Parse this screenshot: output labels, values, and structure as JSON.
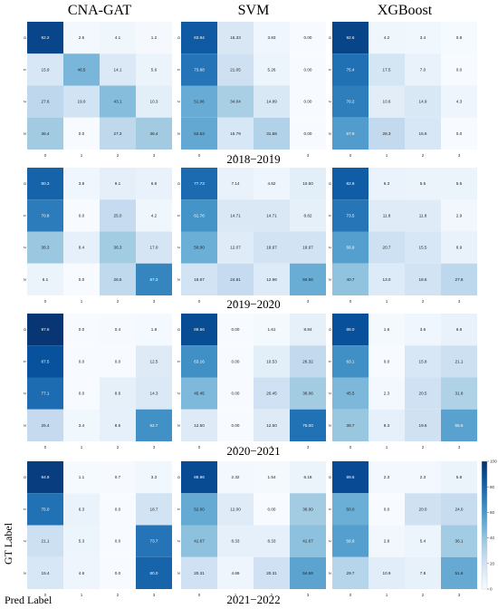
{
  "colors": {
    "scale": [
      "#f7fbff",
      "#deebf7",
      "#c6dbef",
      "#9ecae1",
      "#6baed6",
      "#4292c6",
      "#2171b5",
      "#08519c",
      "#08306b"
    ]
  },
  "chart_data": {
    "type": "heatmap",
    "models": [
      "CNA-GAT",
      "SVM",
      "XGBoost"
    ],
    "periods": [
      "2018−2019",
      "2019−2020",
      "2020−2021",
      "2021−2022"
    ],
    "tick_labels": [
      "0",
      "1",
      "2",
      "3"
    ],
    "ylabel": "GT Label",
    "xlabel": "Pred Label",
    "colorbar": {
      "min": 0,
      "max": 100,
      "ticks": [
        "100",
        "80",
        "60",
        "40",
        "20",
        "0"
      ]
    },
    "matrices": [
      [
        [
          "92.2",
          "2.5",
          "4.1",
          "1.2",
          "15.9",
          "46.5",
          "14.1",
          "5.6",
          "27.6",
          "19.0",
          "43.1",
          "10.3",
          "36.4",
          "0.0",
          "27.3",
          "36.4"
        ],
        [
          "83.94",
          "15.33",
          "3.83",
          "0.00",
          "73.68",
          "21.05",
          "5.26",
          "0.00",
          "51.06",
          "34.04",
          "14.89",
          "0.00",
          "52.63",
          "15.79",
          "31.58",
          "0.00"
        ],
        [
          "92.6",
          "4.2",
          "3.4",
          "0.8",
          "75.4",
          "17.5",
          "7.0",
          "0.0",
          "70.2",
          "10.6",
          "14.9",
          "4.3",
          "57.9",
          "26.3",
          "15.8",
          "0.0"
        ]
      ],
      [
        [
          "80.3",
          "3.8",
          "9.1",
          "6.8",
          "70.8",
          "0.0",
          "25.0",
          "4.2",
          "38.3",
          "8.4",
          "36.3",
          "17.0",
          "6.1",
          "0.0",
          "26.5",
          "67.3"
        ],
        [
          "77.73",
          "7.14",
          "4.62",
          "10.50",
          "61.76",
          "14.71",
          "14.71",
          "8.82",
          "50.00",
          "12.07",
          "18.97",
          "18.97",
          "18.67",
          "24.81",
          "12.96",
          "50.56"
        ],
        [
          "82.8",
          "6.3",
          "5.5",
          "5.5",
          "73.5",
          "11.8",
          "11.8",
          "2.9",
          "56.9",
          "20.7",
          "15.5",
          "6.9",
          "40.7",
          "13.0",
          "18.5",
          "27.8"
        ]
      ],
      [
        [
          "97.6",
          "0.0",
          "0.4",
          "1.8",
          "87.5",
          "0.0",
          "0.0",
          "12.5",
          "77.1",
          "0.0",
          "8.6",
          "14.3",
          "25.4",
          "3.4",
          "8.5",
          "62.7"
        ],
        [
          "89.56",
          "0.00",
          "1.61",
          "8.84",
          "63.16",
          "0.00",
          "10.53",
          "26.32",
          "45.45",
          "0.00",
          "20.45",
          "36.06",
          "12.50",
          "0.00",
          "12.50",
          "75.00"
        ],
        [
          "88.0",
          "1.6",
          "3.6",
          "6.8",
          "63.1",
          "0.0",
          "15.8",
          "21.1",
          "45.5",
          "2.3",
          "20.5",
          "31.8",
          "38.7",
          "8.3",
          "19.6",
          "55.6"
        ]
      ],
      [
        [
          "94.9",
          "1.1",
          "0.7",
          "3.3",
          "75.0",
          "6.3",
          "0.0",
          "18.7",
          "21.1",
          "5.3",
          "0.0",
          "73.7",
          "15.4",
          "4.6",
          "0.0",
          "80.0"
        ],
        [
          "89.96",
          "2.32",
          "1.54",
          "6.18",
          "52.00",
          "12.00",
          "0.00",
          "36.00",
          "41.67",
          "8.33",
          "8.33",
          "41.67",
          "20.31",
          "4.69",
          "20.31",
          "54.69"
        ],
        [
          "89.6",
          "2.3",
          "2.3",
          "5.8",
          "50.0",
          "0.0",
          "20.0",
          "24.0",
          "56.9",
          "2.8",
          "5.4",
          "36.1",
          "29.7",
          "10.9",
          "7.8",
          "51.6"
        ]
      ]
    ]
  }
}
